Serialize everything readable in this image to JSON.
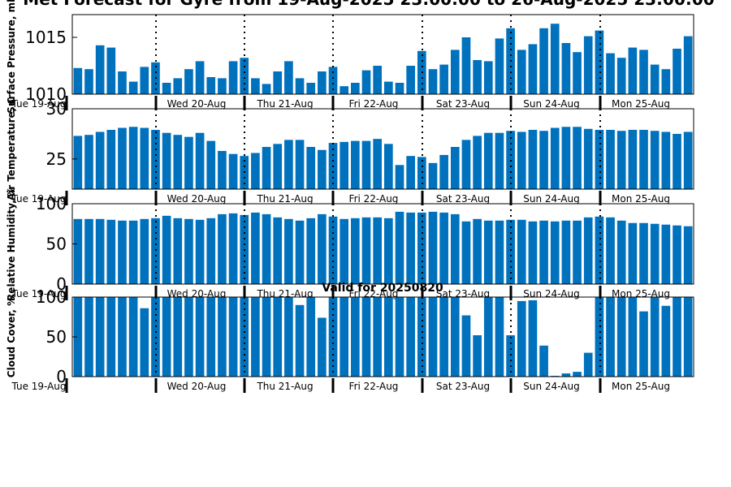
{
  "chart_data": {
    "title": "Met Forecast for Gyre from 19-Aug-2025 23:00:00 to 26-Aug-2025 23:00:00",
    "subtitle": "Valid for 20250820",
    "day_labels": [
      "Tue 19-Aug",
      "Wed 20-Aug",
      "Thu 21-Aug",
      "Fri 22-Aug",
      "Sat 23-Aug",
      "Sun 24-Aug",
      "Mon 25-Aug"
    ],
    "bar_color": "#0072BD",
    "panels": [
      {
        "type": "bar",
        "ylabel": "Surface Pressure, mb",
        "ylim": [
          1010,
          1017
        ],
        "yticks": [
          1010,
          1015
        ],
        "values": [
          1012.3,
          1012.2,
          1014.3,
          1014.1,
          1012.0,
          1011.1,
          1012.4,
          1012.8,
          1011.0,
          1011.4,
          1012.2,
          1012.9,
          1011.5,
          1011.4,
          1012.9,
          1013.2,
          1011.4,
          1010.9,
          1012.0,
          1012.9,
          1011.4,
          1011.0,
          1012.0,
          1012.4,
          1010.7,
          1011.0,
          1012.1,
          1012.5,
          1011.1,
          1011.0,
          1012.5,
          1013.8,
          1012.2,
          1012.6,
          1013.9,
          1015.0,
          1013.0,
          1012.9,
          1014.9,
          1015.8,
          1013.9,
          1014.4,
          1015.8,
          1016.2,
          1014.5,
          1013.7,
          1015.1,
          1015.6,
          1013.6,
          1013.2,
          1014.1,
          1013.9,
          1012.6,
          1012.2,
          1014.0,
          1015.1
        ]
      },
      {
        "type": "bar",
        "ylabel": "Air Temperature, C",
        "ylim": [
          22,
          30
        ],
        "yticks": [
          25,
          30
        ],
        "values": [
          27.3,
          27.4,
          27.7,
          27.9,
          28.1,
          28.2,
          28.1,
          27.9,
          27.6,
          27.4,
          27.2,
          27.6,
          26.8,
          25.8,
          25.5,
          25.3,
          25.6,
          26.2,
          26.5,
          26.9,
          26.9,
          26.2,
          25.9,
          26.6,
          26.7,
          26.8,
          26.8,
          27.0,
          26.5,
          24.4,
          25.3,
          25.2,
          24.6,
          25.4,
          26.2,
          26.9,
          27.3,
          27.6,
          27.6,
          27.8,
          27.7,
          27.9,
          27.8,
          28.1,
          28.2,
          28.2,
          28.0,
          27.9,
          27.9,
          27.8,
          27.9,
          27.9,
          27.8,
          27.7,
          27.5,
          27.7
        ]
      },
      {
        "type": "bar",
        "ylabel": "Relative Humidity, %",
        "ylim": [
          0,
          100
        ],
        "yticks": [
          0,
          50,
          100
        ],
        "values": [
          81,
          81,
          81,
          80,
          79,
          79,
          81,
          82,
          85,
          82,
          81,
          80,
          82,
          87,
          88,
          86,
          89,
          87,
          83,
          81,
          79,
          82,
          87,
          84,
          81,
          82,
          83,
          83,
          82,
          90,
          89,
          89,
          90,
          89,
          87,
          78,
          81,
          79,
          79,
          80,
          80,
          78,
          79,
          78,
          79,
          79,
          83,
          84,
          83,
          79,
          76,
          76,
          75,
          74,
          73,
          72
        ]
      },
      {
        "type": "bar",
        "ylabel": "Cloud Cover, %",
        "ylim": [
          0,
          100
        ],
        "yticks": [
          0,
          50,
          100
        ],
        "values": [
          100,
          100,
          100,
          100,
          100,
          100,
          86,
          100,
          100,
          100,
          100,
          100,
          100,
          100,
          100,
          100,
          100,
          100,
          100,
          100,
          90,
          100,
          74,
          100,
          100,
          100,
          100,
          100,
          100,
          100,
          100,
          100,
          100,
          100,
          100,
          77,
          52,
          100,
          100,
          52,
          95,
          96,
          39,
          1,
          4,
          6,
          30,
          100,
          100,
          100,
          100,
          82,
          100,
          89,
          100,
          100
        ]
      }
    ]
  }
}
